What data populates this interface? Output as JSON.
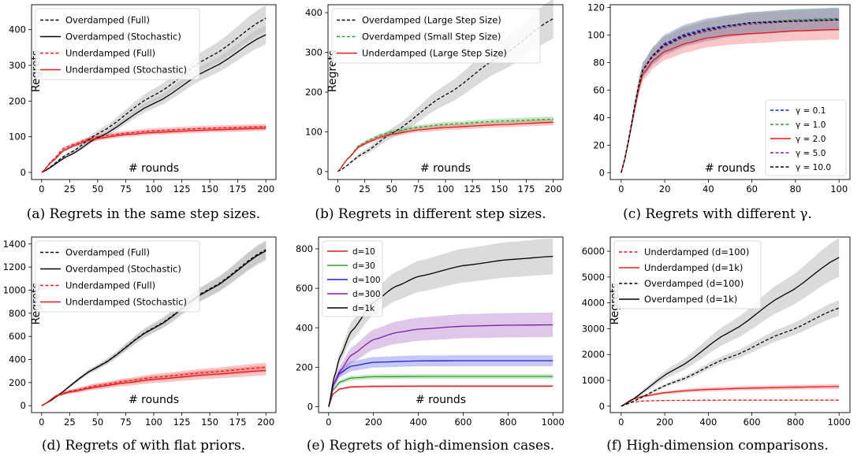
{
  "colors": {
    "red": "#e41a1c",
    "black": "#000000",
    "green": "#2ca02c",
    "blue": "#1f1fd6",
    "purple": "#7b1fa2",
    "band_gray": "#bdbdbd"
  },
  "panels": [
    {
      "caption": "(a)  Regrets in the same step sizes.",
      "chart_data": {
        "type": "line",
        "xlabel": "# rounds",
        "ylabel": "Regrets",
        "xlim": [
          -9,
          209
        ],
        "ylim": [
          -20,
          470
        ],
        "xticks": [
          0,
          25,
          50,
          75,
          100,
          125,
          150,
          175,
          200
        ],
        "yticks": [
          0,
          100,
          200,
          300,
          400
        ],
        "legend": "top-left",
        "series": [
          {
            "name": "Overdamped (Full)",
            "color": "#000000",
            "dash": true,
            "band": 0.085,
            "x": [
              0,
              25,
              50,
              100,
              150,
              200
            ],
            "y": [
              0,
              54,
              108,
              216,
              324,
              432
            ]
          },
          {
            "name": "Overdamped (Stochastic)",
            "color": "#000000",
            "dash": false,
            "band": 0.07,
            "x": [
              0,
              25,
              50,
              100,
              150,
              200
            ],
            "y": [
              0,
              48,
              97,
              193,
              290,
              386
            ]
          },
          {
            "name": "Underdamped (Full)",
            "color": "#e41a1c",
            "dash": true,
            "band": 0.06,
            "x": [
              0,
              10,
              20,
              30,
              40,
              50,
              75,
              100,
              150,
              200
            ],
            "y": [
              0,
              35,
              68,
              80,
              92,
              100,
              110,
              117,
              124,
              128
            ]
          },
          {
            "name": "Underdamped (Stochastic)",
            "color": "#e41a1c",
            "dash": false,
            "band": 0.06,
            "x": [
              0,
              10,
              20,
              30,
              40,
              50,
              75,
              100,
              150,
              200
            ],
            "y": [
              0,
              32,
              62,
              76,
              88,
              95,
              106,
              112,
              119,
              124
            ]
          }
        ]
      }
    },
    {
      "caption": "(b)  Regrets in different step sizes.",
      "chart_data": {
        "type": "line",
        "xlabel": "# rounds",
        "ylabel": "Regrets",
        "xlim": [
          -9,
          209
        ],
        "ylim": [
          -20,
          420
        ],
        "xticks": [
          0,
          25,
          50,
          75,
          100,
          125,
          150,
          175,
          200
        ],
        "yticks": [
          0,
          100,
          200,
          300,
          400
        ],
        "legend": "top-left",
        "series": [
          {
            "name": "Overdamped (Large Step Size)",
            "color": "#000000",
            "dash": true,
            "band": 0.13,
            "x": [
              0,
              25,
              50,
              100,
              150,
              200
            ],
            "y": [
              0,
              48,
              96,
              193,
              289,
              385
            ]
          },
          {
            "name": "Overdamped (Small Step Size)",
            "color": "#2ca02c",
            "dash": true,
            "band": 0.05,
            "x": [
              0,
              10,
              20,
              30,
              40,
              50,
              75,
              100,
              150,
              200
            ],
            "y": [
              0,
              35,
              66,
              80,
              92,
              100,
              112,
              119,
              127,
              132
            ]
          },
          {
            "name": "Underdamped (Large Step Size)",
            "color": "#e41a1c",
            "dash": false,
            "band": 0.06,
            "x": [
              0,
              10,
              20,
              30,
              40,
              50,
              75,
              100,
              150,
              200
            ],
            "y": [
              0,
              34,
              63,
              76,
              87,
              94,
              105,
              111,
              118,
              124
            ]
          }
        ]
      }
    },
    {
      "caption": "(c)  Regrets with different γ.",
      "chart_data": {
        "type": "line",
        "xlabel": "# rounds",
        "ylabel": "",
        "xlim": [
          -5,
          105
        ],
        "ylim": [
          -5,
          122
        ],
        "xticks": [
          0,
          20,
          40,
          60,
          80,
          100
        ],
        "yticks": [
          0,
          20,
          40,
          60,
          80,
          100,
          120
        ],
        "legend": "bottom-right",
        "series": [
          {
            "name": "γ = 0.1",
            "color": "#1f1fd6",
            "dash": true,
            "band": 0.07,
            "x": [
              0,
              10,
              15,
              20,
              30,
              40,
              50,
              60,
              80,
              100
            ],
            "y": [
              0,
              75,
              86,
              94,
              101,
              105,
              107,
              109,
              111,
              112
            ]
          },
          {
            "name": "γ = 1.0",
            "color": "#2ca02c",
            "dash": true,
            "band": 0.07,
            "x": [
              0,
              10,
              15,
              20,
              30,
              40,
              50,
              60,
              80,
              100
            ],
            "y": [
              0,
              75,
              86,
              93,
              100,
              104,
              107,
              109,
              111,
              112
            ]
          },
          {
            "name": "γ = 2.0",
            "color": "#e41a1c",
            "dash": false,
            "band": 0.07,
            "x": [
              0,
              10,
              15,
              20,
              30,
              40,
              50,
              60,
              80,
              100
            ],
            "y": [
              0,
              72,
              82,
              88,
              94,
              98,
              100,
              101,
              103,
              104
            ]
          },
          {
            "name": "γ = 5.0",
            "color": "#7b1fa2",
            "dash": true,
            "band": 0.07,
            "x": [
              0,
              10,
              15,
              20,
              30,
              40,
              50,
              60,
              80,
              100
            ],
            "y": [
              0,
              75,
              85,
              92,
              99,
              103,
              106,
              108,
              110,
              111
            ]
          },
          {
            "name": "γ = 10.0",
            "color": "#000000",
            "dash": true,
            "band": 0.07,
            "x": [
              0,
              10,
              15,
              20,
              30,
              40,
              50,
              60,
              80,
              100
            ],
            "y": [
              0,
              75,
              86,
              93,
              100,
              104,
              107,
              109,
              110,
              111
            ]
          }
        ]
      }
    },
    {
      "caption": "(d)  Regrets of with flat priors.",
      "chart_data": {
        "type": "line",
        "xlabel": "# rounds",
        "ylabel": "Regrets",
        "xlim": [
          -9,
          209
        ],
        "ylim": [
          -60,
          1460
        ],
        "xticks": [
          0,
          25,
          50,
          75,
          100,
          125,
          150,
          175,
          200
        ],
        "yticks": [
          0,
          200,
          400,
          600,
          800,
          1000,
          1200,
          1400
        ],
        "legend": "top-left",
        "series": [
          {
            "name": "Overdamped (Full)",
            "color": "#000000",
            "dash": true,
            "band": 0.06,
            "x": [
              0,
              50,
              100,
              150,
              200
            ],
            "y": [
              0,
              337,
              675,
              1012,
              1350
            ]
          },
          {
            "name": "Overdamped (Stochastic)",
            "color": "#000000",
            "dash": false,
            "band": 0.06,
            "x": [
              0,
              50,
              100,
              150,
              200
            ],
            "y": [
              0,
              335,
              670,
              1005,
              1340
            ]
          },
          {
            "name": "Underdamped (Full)",
            "color": "#e41a1c",
            "dash": true,
            "band": 0.12,
            "x": [
              0,
              15,
              25,
              50,
              75,
              100,
              150,
              200
            ],
            "y": [
              0,
              95,
              125,
              175,
              212,
              245,
              290,
              332
            ]
          },
          {
            "name": "Underdamped (Stochastic)",
            "color": "#e41a1c",
            "dash": false,
            "band": 0.14,
            "x": [
              0,
              15,
              25,
              50,
              75,
              100,
              150,
              200
            ],
            "y": [
              0,
              92,
              118,
              163,
              198,
              228,
              270,
              305
            ]
          }
        ]
      }
    },
    {
      "caption": "(e)  Regrets of high-dimension cases.",
      "chart_data": {
        "type": "line",
        "xlabel": "# rounds",
        "ylabel": "",
        "xlim": [
          -45,
          1045
        ],
        "ylim": [
          -30,
          860
        ],
        "xticks": [
          0,
          200,
          400,
          600,
          800,
          1000
        ],
        "yticks": [
          0,
          200,
          400,
          600,
          800
        ],
        "legend": "top-left",
        "series": [
          {
            "name": "d=10",
            "color": "#e41a1c",
            "dash": false,
            "band": 0.06,
            "x": [
              0,
              20,
              50,
              100,
              200,
              400,
              600,
              1000
            ],
            "y": [
              0,
              65,
              90,
              100,
              103,
              104,
              104,
              104
            ]
          },
          {
            "name": "d=30",
            "color": "#2ca02c",
            "dash": false,
            "band": 0.08,
            "x": [
              0,
              20,
              50,
              100,
              200,
              400,
              600,
              1000
            ],
            "y": [
              0,
              85,
              125,
              145,
              152,
              153,
              153,
              153
            ]
          },
          {
            "name": "d=100",
            "color": "#1f1fd6",
            "dash": false,
            "band": 0.12,
            "x": [
              0,
              20,
              50,
              100,
              200,
              400,
              600,
              1000
            ],
            "y": [
              0,
              110,
              170,
              205,
              225,
              232,
              233,
              233
            ]
          },
          {
            "name": "d=300",
            "color": "#7b1fa2",
            "dash": false,
            "band": 0.15,
            "x": [
              0,
              25,
              50,
              100,
              200,
              300,
              400,
              600,
              800,
              1000
            ],
            "y": [
              0,
              120,
              180,
              260,
              340,
              375,
              393,
              408,
              413,
              415
            ]
          },
          {
            "name": "d=1k",
            "color": "#000000",
            "dash": false,
            "band": 0.12,
            "x": [
              0,
              25,
              50,
              100,
              200,
              300,
              400,
              600,
              800,
              1000
            ],
            "y": [
              0,
              150,
              250,
              380,
              530,
              610,
              660,
              715,
              745,
              762
            ]
          }
        ]
      }
    },
    {
      "caption": "(f)  High-dimension comparisons.",
      "chart_data": {
        "type": "line",
        "xlabel": "",
        "ylabel": "Regrets",
        "xlim": [
          -50,
          1050
        ],
        "ylim": [
          -250,
          6550
        ],
        "xticks": [
          0,
          200,
          400,
          600,
          800,
          1000
        ],
        "yticks": [
          0,
          1000,
          2000,
          3000,
          4000,
          5000,
          6000
        ],
        "legend": "top-left",
        "series": [
          {
            "name": "Underdamped (d=100)",
            "color": "#e41a1c",
            "dash": true,
            "band": 0.05,
            "x": [
              0,
              50,
              100,
              200,
              400,
              600,
              1000
            ],
            "y": [
              0,
              150,
              200,
              220,
              230,
              232,
              233
            ]
          },
          {
            "name": "Underdamped (d=1k)",
            "color": "#e41a1c",
            "dash": false,
            "band": 0.12,
            "x": [
              0,
              50,
              100,
              200,
              300,
              400,
              600,
              800,
              1000
            ],
            "y": [
              0,
              260,
              380,
              520,
              600,
              650,
              700,
              735,
              760
            ]
          },
          {
            "name": "Overdamped (d=100)",
            "color": "#000000",
            "dash": true,
            "band": 0.08,
            "x": [
              0,
              250,
              500,
              750,
              1000
            ],
            "y": [
              0,
              950,
              1900,
              2850,
              3800
            ]
          },
          {
            "name": "Overdamped (d=1k)",
            "color": "#000000",
            "dash": false,
            "band": 0.13,
            "x": [
              0,
              250,
              500,
              750,
              1000
            ],
            "y": [
              0,
              1440,
              2880,
              4320,
              5760
            ]
          }
        ]
      }
    }
  ]
}
